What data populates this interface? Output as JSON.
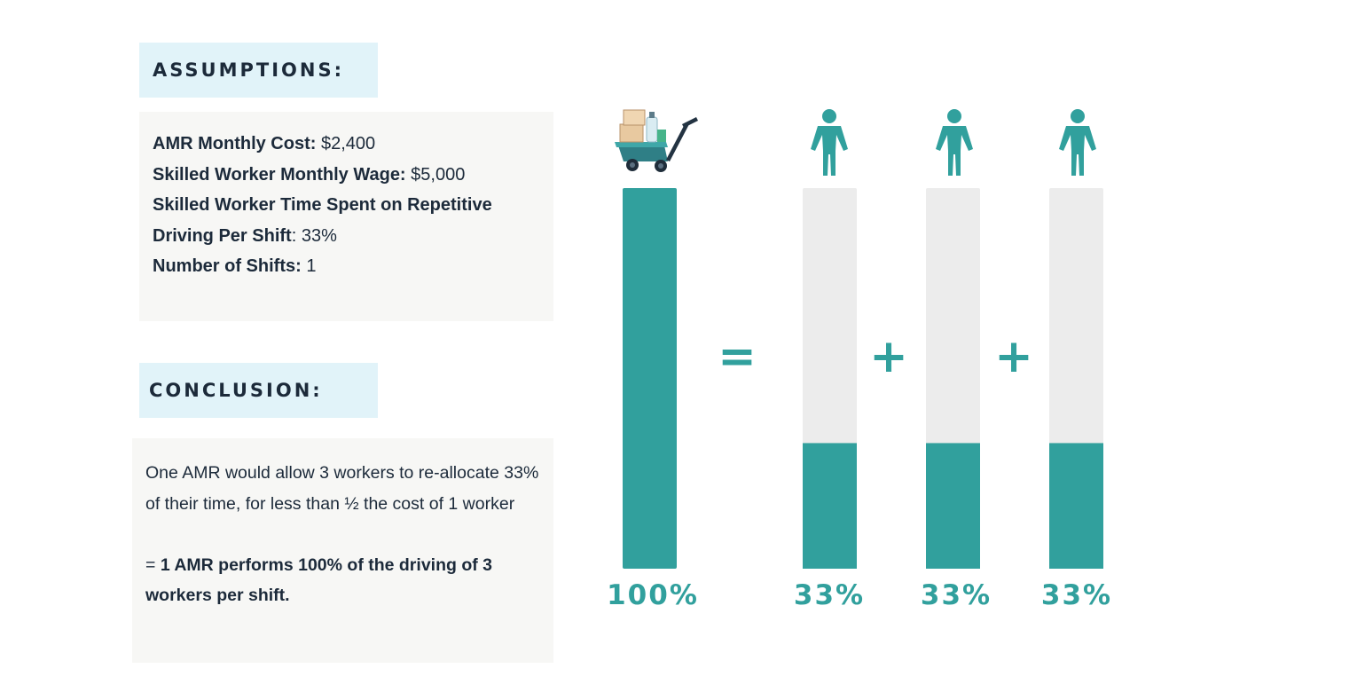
{
  "assumptions": {
    "header": "ASSUMPTIONS:",
    "lines": [
      {
        "label": "AMR Monthly Cost:",
        "value": " $2,400"
      },
      {
        "label": "Skilled Worker Monthly Wage:",
        "value": " $5,000"
      },
      {
        "label": "Skilled Worker Time Spent on Repetitive",
        "value": ""
      },
      {
        "label": "Driving Per Shift",
        "value": ": 33%"
      },
      {
        "label": "Number of Shifts:",
        "value": " 1"
      }
    ]
  },
  "conclusion": {
    "header": "CONCLUSION:",
    "text": "One AMR would allow 3 workers to re-allocate 33% of their time, for less than ½ the cost of 1 worker",
    "prefix": "= ",
    "bold": "1 AMR performs 100% of the driving of 3 workers per shift."
  },
  "chart_data": {
    "type": "bar",
    "categories": [
      "AMR",
      "Worker 1",
      "Worker 2",
      "Worker 3"
    ],
    "values": [
      100,
      33,
      33,
      33
    ],
    "value_labels": [
      "100%",
      "33%",
      "33%",
      "33%"
    ],
    "ylim": [
      0,
      100
    ],
    "operators": [
      "=",
      "+",
      "+"
    ],
    "icons": [
      "amr-cart-icon",
      "person-icon",
      "person-icon",
      "person-icon"
    ],
    "colors": {
      "fill": "#31a09d",
      "track": "#ececec"
    }
  }
}
